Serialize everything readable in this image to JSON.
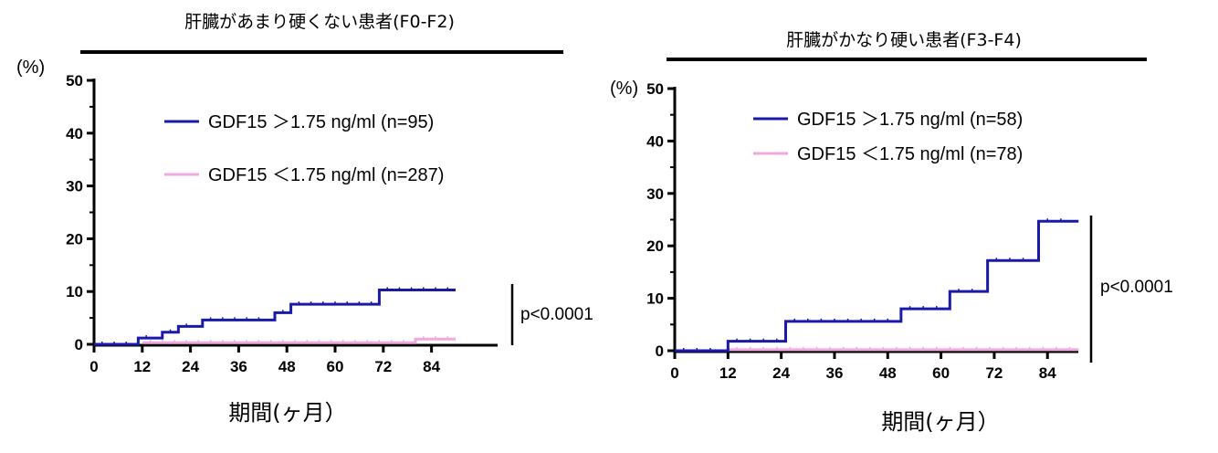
{
  "colors": {
    "high": "#1a1aa8",
    "low": "#f0a8e0",
    "axis": "#000000"
  },
  "chart_data": [
    {
      "type": "line",
      "title": "肝臓があまり硬くない患者(F0-F2)",
      "ylabel": "(%)",
      "xlabel": "期間(ヶ月）",
      "xlim": [
        0,
        90
      ],
      "ylim": [
        0,
        50
      ],
      "xticks": [
        "0",
        "12",
        "24",
        "36",
        "48",
        "60",
        "72",
        "84"
      ],
      "yticks": [
        "0",
        "10",
        "20",
        "30",
        "40",
        "50"
      ],
      "pvalue": "p<0.0001",
      "series": [
        {
          "name": "GDF15 ＞1.75 ng/ml (n=95)",
          "color": "high",
          "steps": [
            [
              0,
              0
            ],
            [
              11,
              1.2
            ],
            [
              17,
              2.3
            ],
            [
              21,
              3.4
            ],
            [
              27,
              4.6
            ],
            [
              45,
              6.0
            ],
            [
              49,
              7.6
            ],
            [
              71,
              10.3
            ],
            [
              90,
              10.3
            ]
          ]
        },
        {
          "name": "GDF15 ＜1.75 ng/ml (n=287)",
          "color": "low",
          "steps": [
            [
              12,
              0.3
            ],
            [
              80,
              1.0
            ],
            [
              90,
              1.0
            ]
          ]
        }
      ]
    },
    {
      "type": "line",
      "title": "肝臓がかなり硬い患者(F3-F4)",
      "ylabel": "(%)",
      "xlabel": "期間(ヶ月）",
      "xlim": [
        0,
        90
      ],
      "ylim": [
        0,
        50
      ],
      "xticks": [
        "0",
        "12",
        "24",
        "36",
        "48",
        "60",
        "72",
        "84"
      ],
      "yticks": [
        "0",
        "10",
        "20",
        "30",
        "40",
        "50"
      ],
      "pvalue": "p<0.0001",
      "series": [
        {
          "name": "GDF15 ＞1.75 ng/ml (n=58)",
          "color": "high",
          "steps": [
            [
              0,
              0
            ],
            [
              12,
              1.8
            ],
            [
              25,
              5.6
            ],
            [
              51,
              8.0
            ],
            [
              62,
              11.3
            ],
            [
              70.5,
              17.2
            ],
            [
              82,
              24.7
            ],
            [
              91,
              24.7
            ]
          ]
        },
        {
          "name": "GDF15 ＜1.75 ng/ml (n=78)",
          "color": "low",
          "steps": [
            [
              12,
              0.2
            ],
            [
              91,
              0.2
            ]
          ]
        }
      ]
    }
  ]
}
